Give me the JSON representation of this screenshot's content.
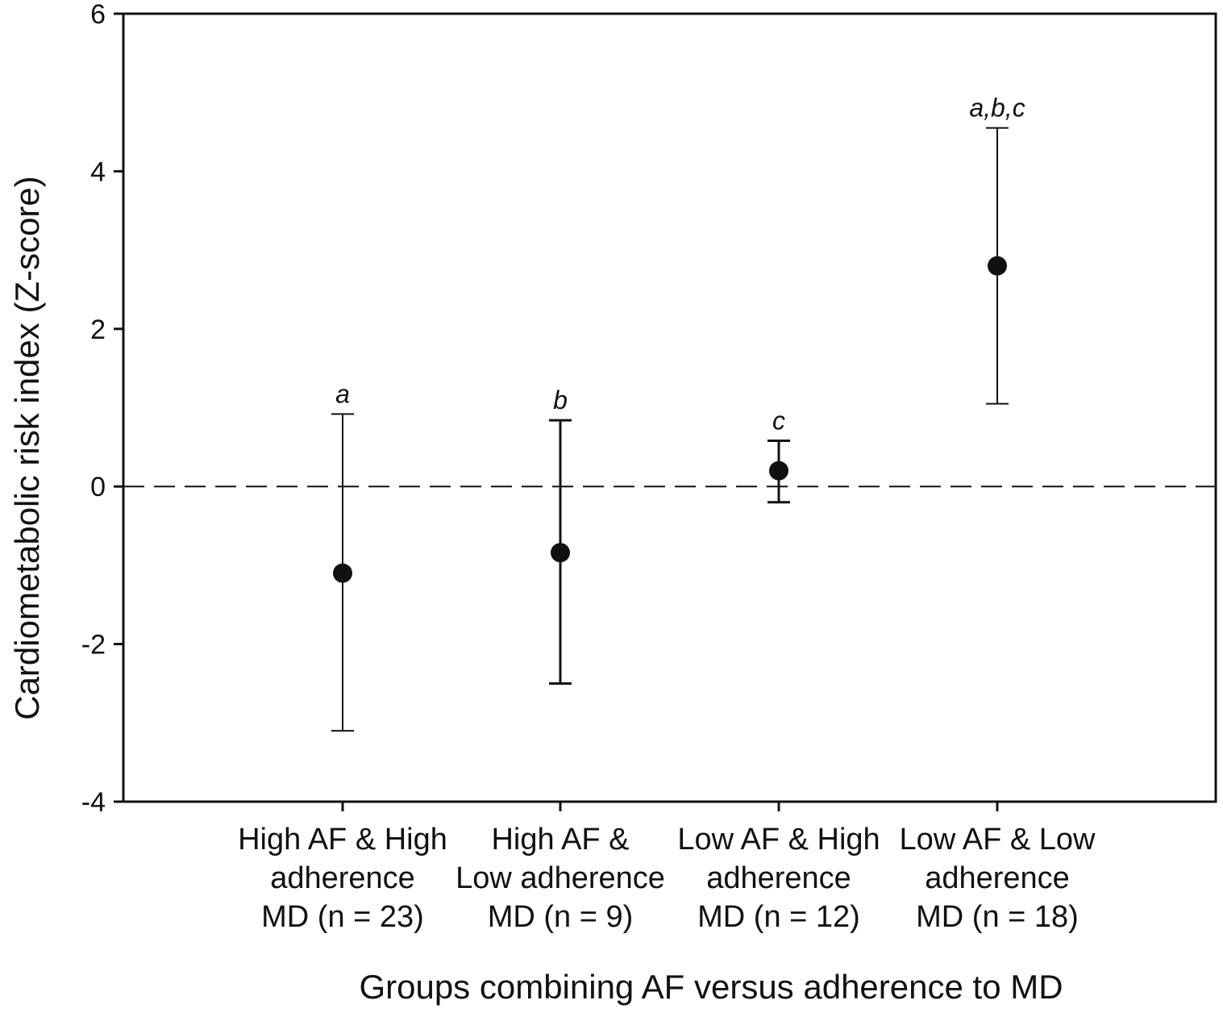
{
  "chart_data": {
    "type": "scatter",
    "xlabel": "Groups combining AF versus adherence to MD",
    "ylabel": "Cardiometabolic risk index (Z-score)",
    "ylim": [
      -4,
      6
    ],
    "yticks": [
      "-4",
      "-2",
      "0",
      "2",
      "4",
      "6"
    ],
    "grid": false,
    "reference_line": {
      "y": 0,
      "style": "dashed"
    },
    "categories": [
      {
        "lines": [
          "High AF & High",
          "adherence",
          "MD (n = 23)"
        ]
      },
      {
        "lines": [
          "High AF &",
          "Low adherence",
          "MD (n = 9)"
        ]
      },
      {
        "lines": [
          "Low AF & High",
          "adherence",
          "MD (n = 12)"
        ]
      },
      {
        "lines": [
          "Low AF & Low",
          "adherence",
          "MD (n = 18)"
        ]
      }
    ],
    "points": [
      {
        "mean": -1.1,
        "lower": -3.1,
        "upper": 0.92,
        "annotation": "a"
      },
      {
        "mean": -0.84,
        "lower": -2.5,
        "upper": 0.84,
        "annotation": "b"
      },
      {
        "mean": 0.2,
        "lower": -0.2,
        "upper": 0.58,
        "annotation": "c"
      },
      {
        "mean": 2.8,
        "lower": 1.05,
        "upper": 4.55,
        "annotation": "a,b,c"
      }
    ]
  }
}
